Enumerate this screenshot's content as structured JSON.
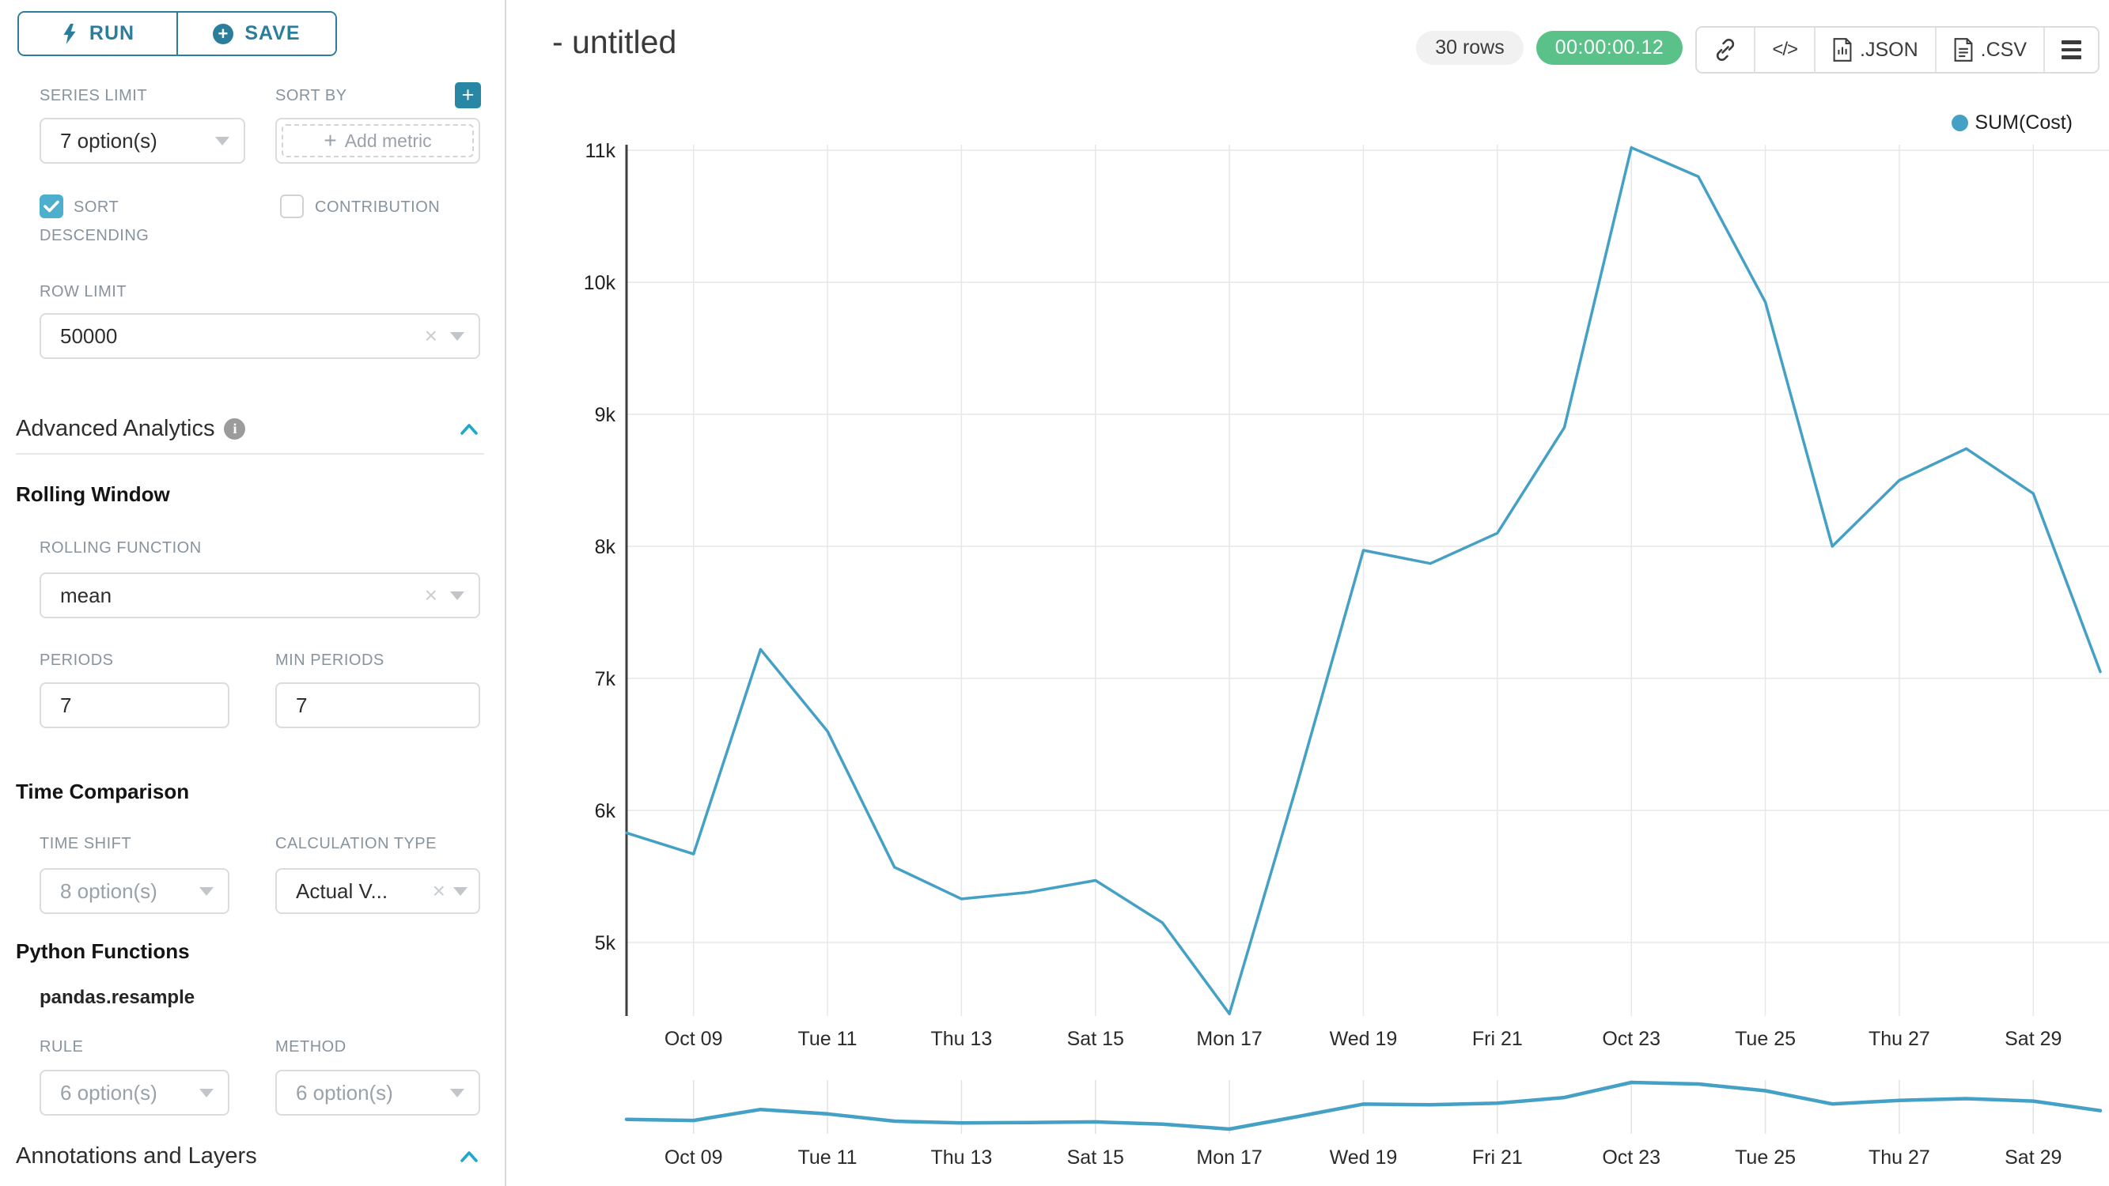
{
  "colors": {
    "accent_teal": "#20A7C9",
    "button_teal": "#2A7E9B",
    "plus_teal": "#2787A5",
    "checkbox_blue": "#4DAFCE",
    "timer_green": "#5AC189",
    "series_line": "#45A0C5"
  },
  "sidebar": {
    "run_label": "RUN",
    "save_label": "SAVE",
    "series_limit": {
      "label": "SERIES LIMIT",
      "value": "7 option(s)"
    },
    "sort_by": {
      "label": "SORT BY",
      "placeholder": "Add metric",
      "plus_glyph": "+"
    },
    "sort_descending": {
      "line1": "SORT",
      "line2": "DESCENDING",
      "checked": true
    },
    "contribution": {
      "label": "CONTRIBUTION",
      "checked": false
    },
    "row_limit": {
      "label": "ROW LIMIT",
      "value": "50000"
    },
    "advanced_analytics": {
      "title": "Advanced Analytics"
    },
    "rolling_window": {
      "title": "Rolling Window",
      "rolling_function": {
        "label": "ROLLING FUNCTION",
        "value": "mean"
      },
      "periods": {
        "label": "PERIODS",
        "value": "7"
      },
      "min_periods": {
        "label": "MIN PERIODS",
        "value": "7"
      }
    },
    "time_comparison": {
      "title": "Time Comparison",
      "time_shift": {
        "label": "TIME SHIFT",
        "value": "8 option(s)"
      },
      "calculation_type": {
        "label": "CALCULATION TYPE",
        "value": "Actual V..."
      }
    },
    "python_functions": {
      "title": "Python Functions",
      "subtitle": "pandas.resample",
      "rule": {
        "label": "RULE",
        "value": "6 option(s)"
      },
      "method": {
        "label": "METHOD",
        "value": "6 option(s)"
      }
    },
    "annotations": {
      "title": "Annotations and Layers"
    }
  },
  "header": {
    "title": "- untitled",
    "rows_badge": "30 rows",
    "timer_badge": "00:00:00.12",
    "json_label": ".JSON",
    "csv_label": ".CSV",
    "code_glyph": "</>"
  },
  "chart_data": {
    "type": "line",
    "title": "",
    "legend_position": "top-right",
    "grid": true,
    "ylim": [
      4300,
      11100
    ],
    "y_ticks": [
      "11k",
      "10k",
      "9k",
      "8k",
      "7k",
      "6k",
      "5k"
    ],
    "x_tick_labels": [
      "Oct 09",
      "Tue 11",
      "Thu 13",
      "Sat 15",
      "Mon 17",
      "Wed 19",
      "Fri 21",
      "Oct 23",
      "Tue 25",
      "Thu 27",
      "Sat 29"
    ],
    "x": [
      "Oct 08",
      "Oct 09",
      "Oct 10",
      "Oct 11",
      "Oct 12",
      "Oct 13",
      "Oct 14",
      "Oct 15",
      "Oct 16",
      "Oct 17",
      "Oct 18",
      "Oct 19",
      "Oct 20",
      "Oct 21",
      "Oct 22",
      "Oct 23",
      "Oct 24",
      "Oct 25",
      "Oct 26",
      "Oct 27",
      "Oct 28",
      "Oct 29",
      "Oct 30"
    ],
    "series": [
      {
        "name": "SUM(Cost)",
        "color": "#45A0C5",
        "values": [
          5830,
          5670,
          7220,
          6600,
          5570,
          5330,
          5380,
          5470,
          5150,
          4460,
          6180,
          7970,
          7870,
          8100,
          8900,
          11020,
          10800,
          9850,
          8000,
          8500,
          8740,
          8400,
          7050
        ]
      }
    ],
    "has_range_selector": true
  }
}
